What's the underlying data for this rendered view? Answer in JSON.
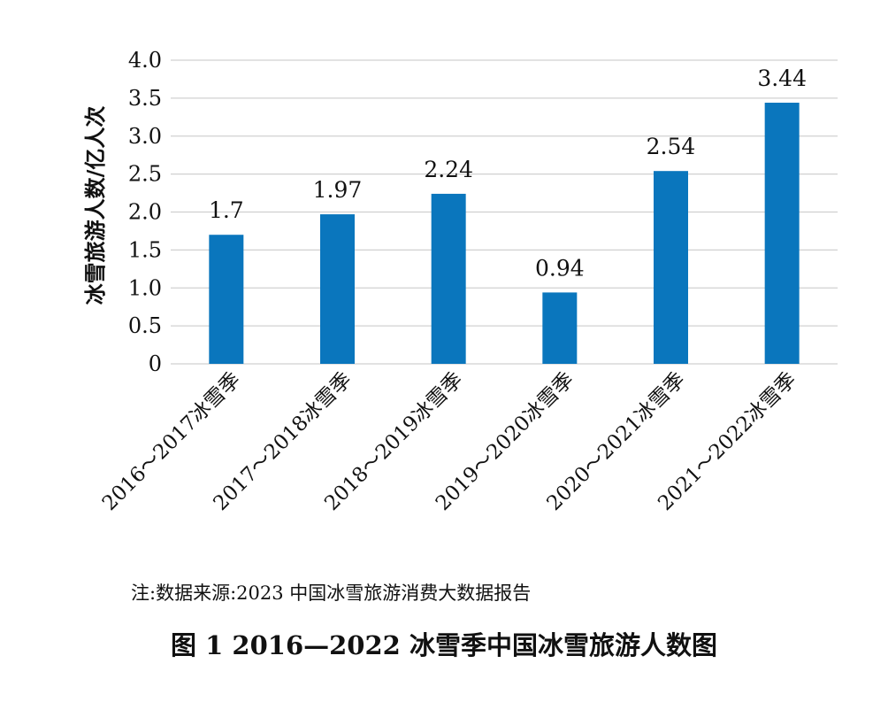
{
  "chart_data": {
    "type": "bar",
    "categories": [
      "2016～2017冰雪季",
      "2017～2018冰雪季",
      "2018～2019冰雪季",
      "2019～2020冰雪季",
      "2020～2021冰雪季",
      "2021～2022冰雪季"
    ],
    "values": [
      1.7,
      1.97,
      2.24,
      0.94,
      2.54,
      3.44
    ],
    "value_labels": [
      "1.7",
      "1.97",
      "2.24",
      "0.94",
      "2.54",
      "3.44"
    ],
    "ylabel": "冰雪旅游人数/亿人次",
    "ylim": [
      0,
      4.0
    ],
    "yticks": [
      "0",
      "0.5",
      "1.0",
      "1.5",
      "2.0",
      "2.5",
      "3.0",
      "3.5",
      "4.0"
    ],
    "grid": true,
    "bar_color": "#0a76bd",
    "grid_color": "#d0d0d0"
  },
  "note": "注:数据来源:2023 中国冰雪旅游消费大数据报告",
  "caption": "图 1 2016—2022 冰雪季中国冰雪旅游人数图"
}
